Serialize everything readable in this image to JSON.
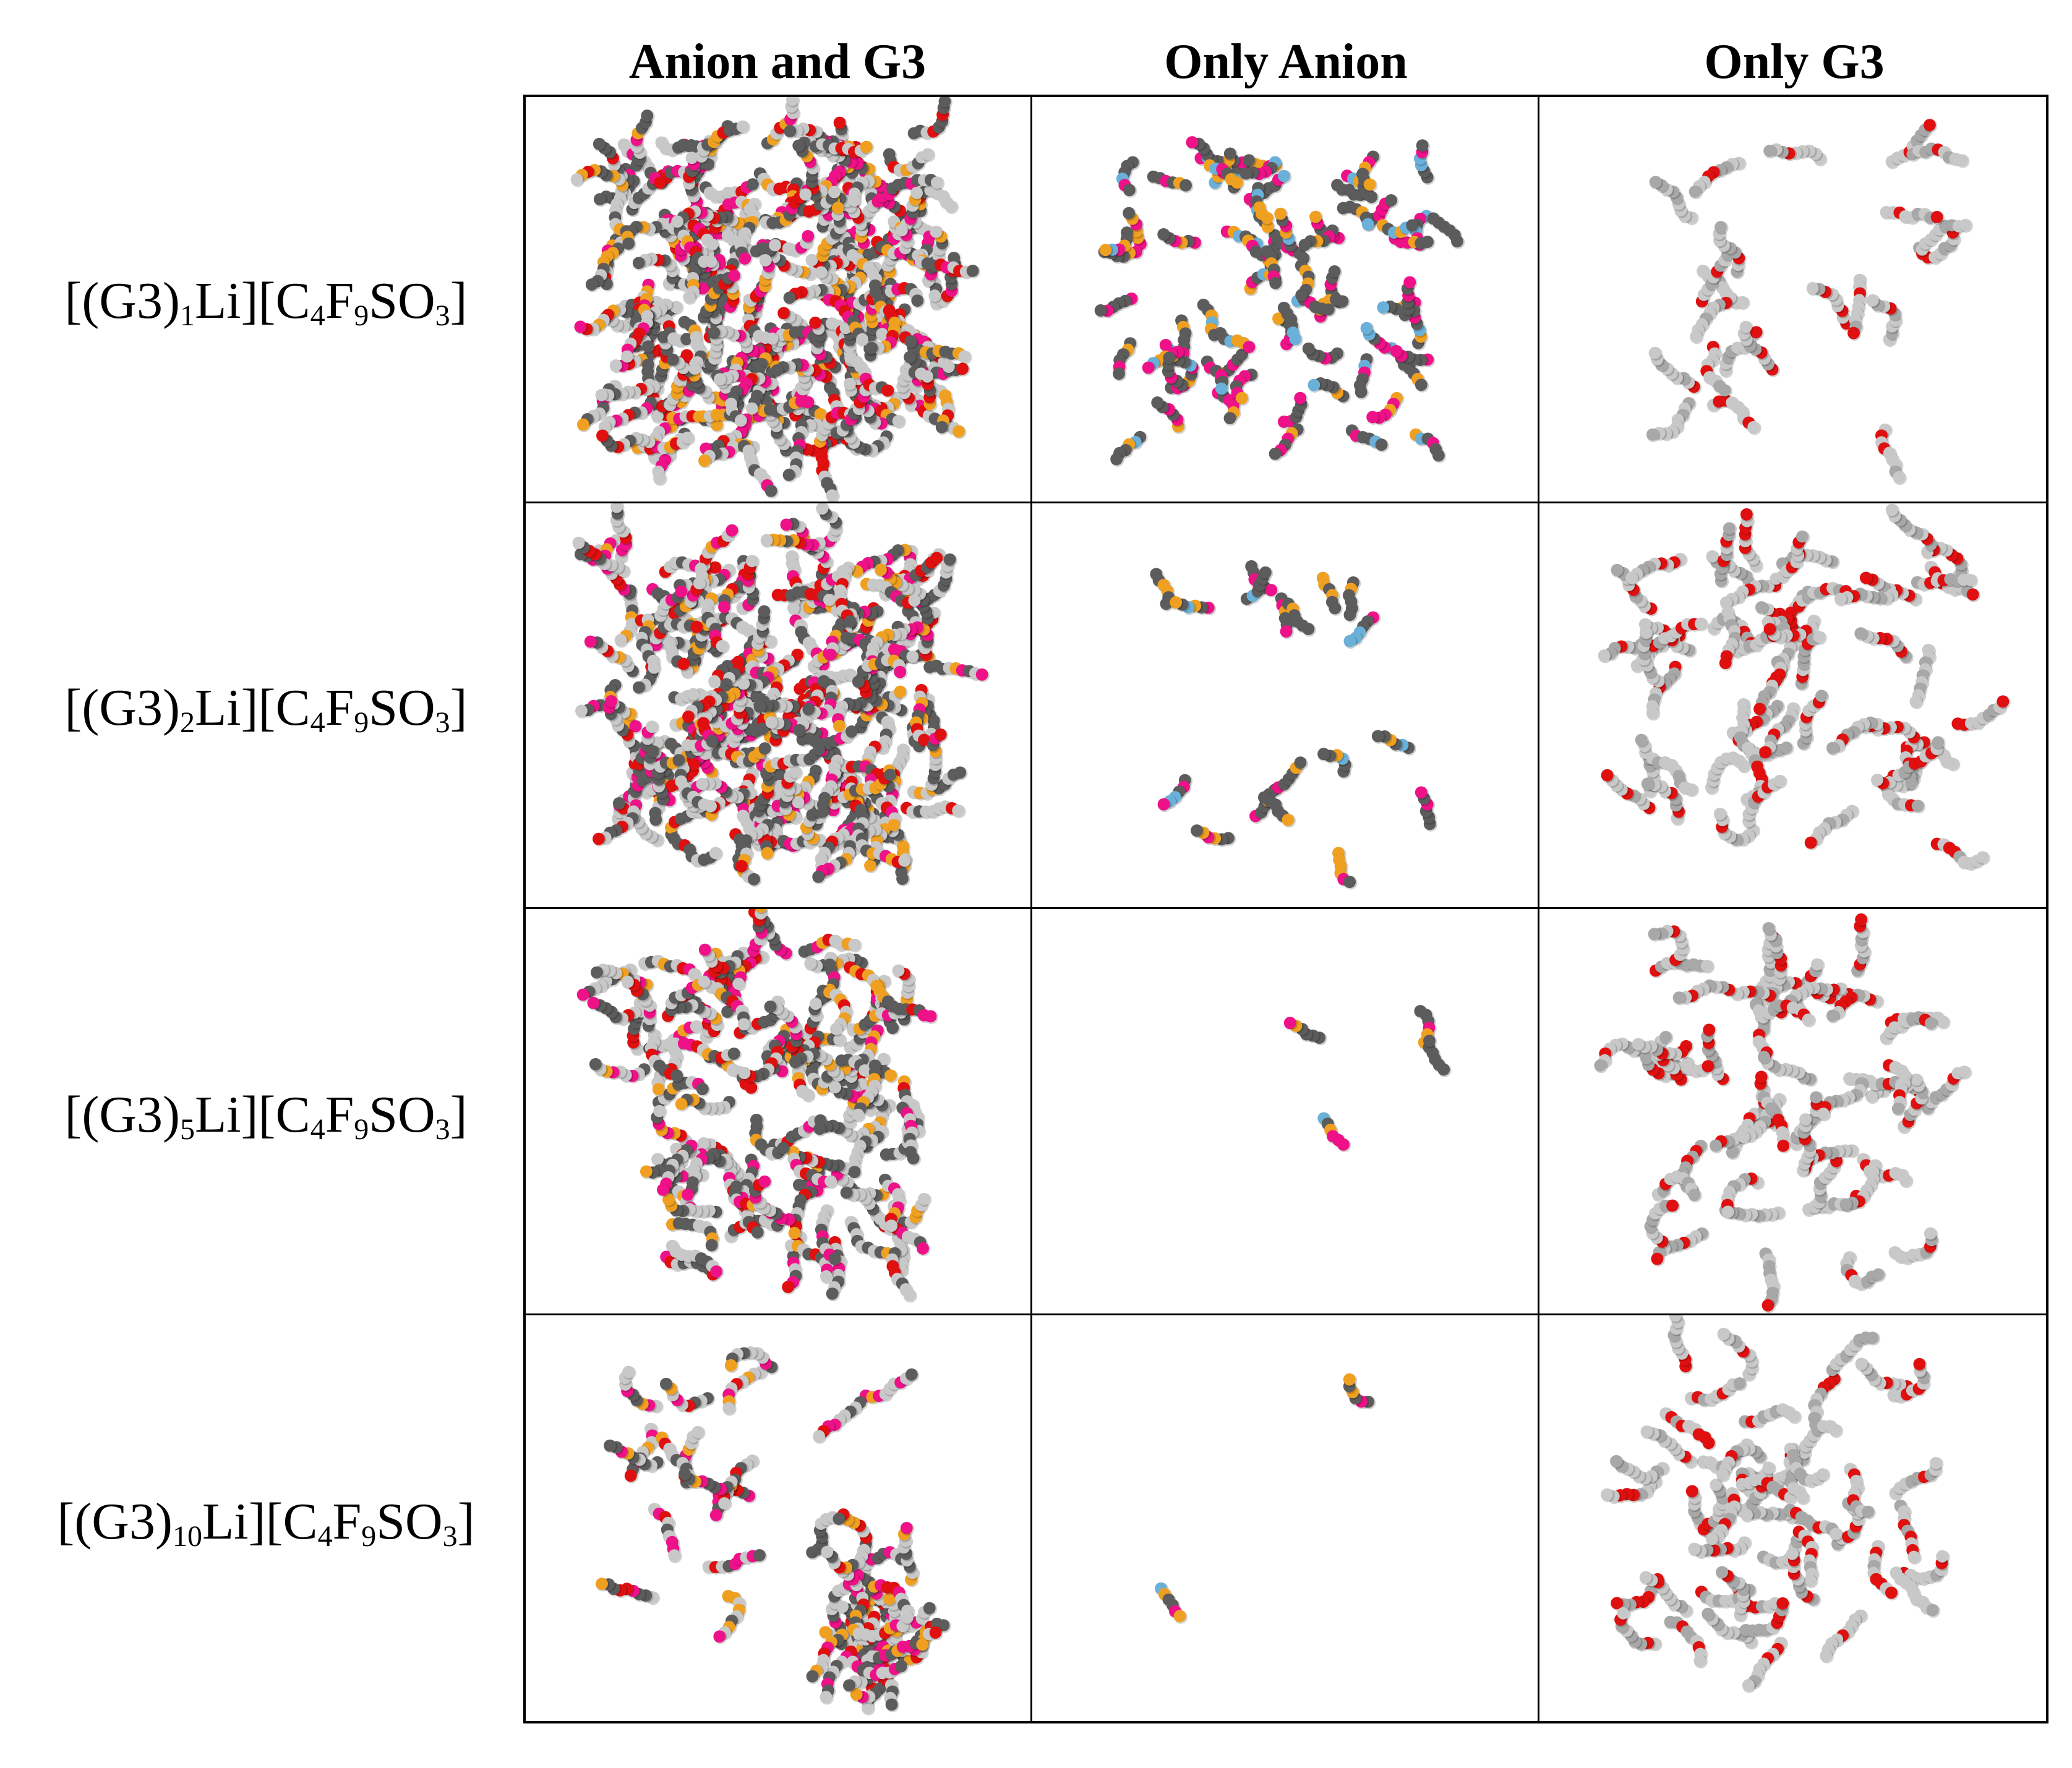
{
  "column_headers": [
    "Anion and G3",
    "Only Anion",
    "Only G3"
  ],
  "rows": [
    {
      "label_parts": [
        "[(G3)",
        "1",
        "Li][C",
        "4",
        "F",
        "9",
        "SO",
        "3",
        "]"
      ]
    },
    {
      "label_parts": [
        "[(G3)",
        "2",
        "Li][C",
        "4",
        "F",
        "9",
        "SO",
        "3",
        "]"
      ]
    },
    {
      "label_parts": [
        "[(G3)",
        "5",
        "Li][C",
        "4",
        "F",
        "9",
        "SO",
        "3",
        "]"
      ]
    },
    {
      "label_parts": [
        "[(G3)",
        "10",
        "Li][C",
        "4",
        "F",
        "9",
        "SO",
        "3",
        "]"
      ]
    }
  ],
  "atom_colors": {
    "carbon": "#5c5c5c",
    "hydrogen": "#c8c8c8",
    "oxygen": "#e01010",
    "sulfur": "#f0a020",
    "fluorine_pink": "#ee1188",
    "lithium": "#6ab0d8"
  },
  "panel_icons": [
    "molecular-snapshot-icon"
  ]
}
